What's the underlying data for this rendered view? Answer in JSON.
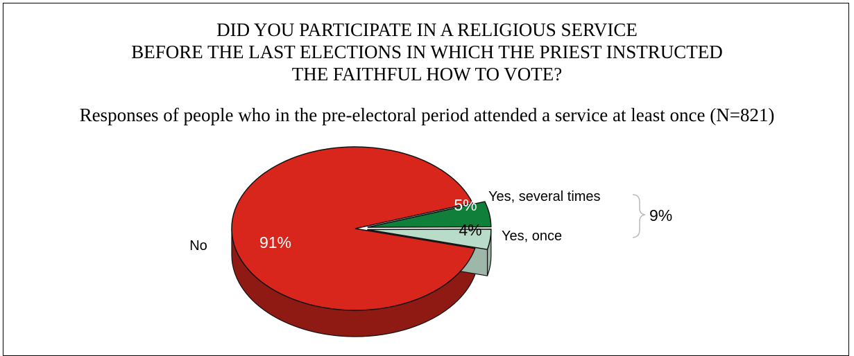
{
  "chart_data": {
    "type": "pie",
    "title_lines": [
      "DID YOU PARTICIPATE IN A RELIGIOUS SERVICE",
      "BEFORE THE LAST ELECTIONS IN WHICH THE PRIEST INSTRUCTED",
      "THE FAITHFUL HOW TO VOTE?"
    ],
    "subtitle": "Responses of people who in the pre-electoral period attended a service at least once (N=821)",
    "slices": [
      {
        "label": "No",
        "value": 91,
        "value_label": "91%",
        "color": "#d9261c",
        "side_color": "#8f1a14",
        "exploded": false
      },
      {
        "label": "Yes,  several times",
        "value": 5,
        "value_label": "5%",
        "color": "#0f7f3a",
        "side_color": "#0b5c2a",
        "exploded": true
      },
      {
        "label": "Yes, once",
        "value": 4,
        "value_label": "4%",
        "color": "#b9dcc8",
        "side_color": "#9fb7a9",
        "exploded": true
      }
    ],
    "group_annotation": {
      "members": [
        "Yes,  several times",
        "Yes, once"
      ],
      "label": "9%"
    }
  }
}
